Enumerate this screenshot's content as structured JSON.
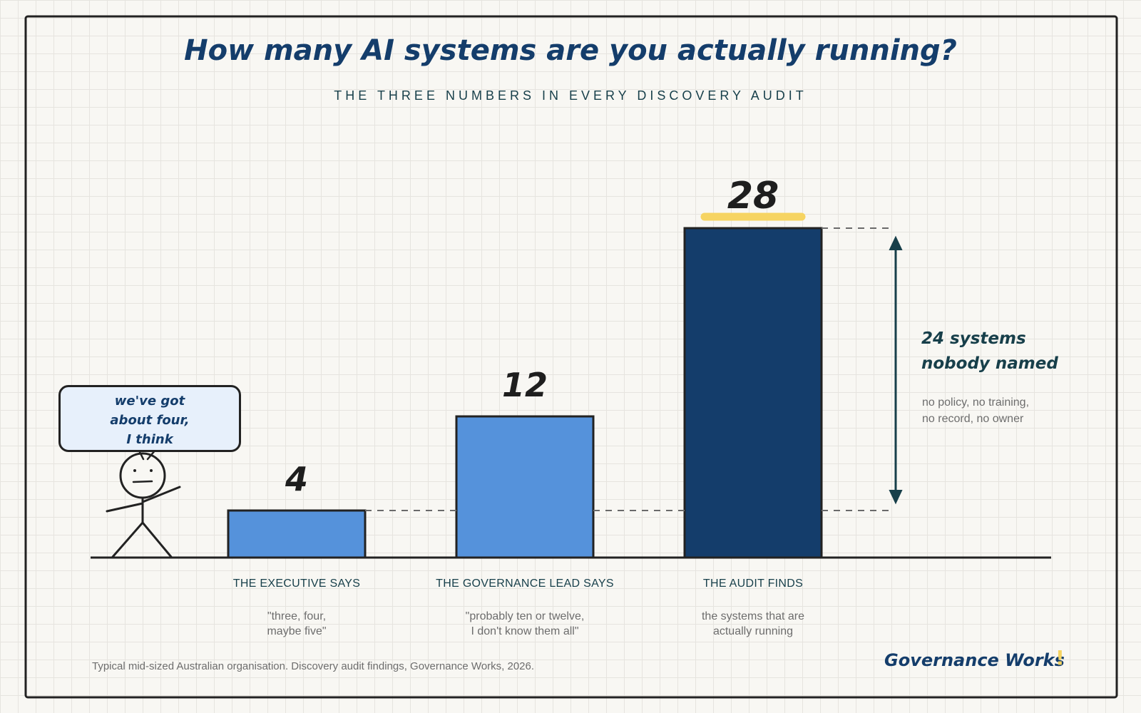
{
  "header": {
    "title": "How many AI systems are you actually running?",
    "subtitle": "THE THREE NUMBERS IN EVERY DISCOVERY AUDIT"
  },
  "speech_bubble": {
    "lines": [
      "we've got",
      "about four,",
      "I think"
    ]
  },
  "chart_data": {
    "type": "bar",
    "title": "How many AI systems are you actually running?",
    "subtitle": "THE THREE NUMBERS IN EVERY DISCOVERY AUDIT",
    "categories": [
      "THE EXECUTIVE SAYS",
      "THE GOVERNANCE LEAD SAYS",
      "THE AUDIT FINDS"
    ],
    "values": [
      4,
      12,
      28
    ],
    "value_labels": [
      "4",
      "12",
      "28"
    ],
    "quotes": [
      [
        "\"three, four,",
        "maybe five\""
      ],
      [
        "\"probably ten or twelve,",
        "I don't know them all\""
      ],
      [
        "the systems that are",
        "actually running"
      ]
    ],
    "colors": [
      "#5592db",
      "#5592db",
      "#143d6b"
    ],
    "highlight_color": "#f6d462",
    "ylim": [
      0,
      28
    ],
    "grid": false,
    "annotation": {
      "from_value": 4,
      "to_value": 28,
      "title_lines": [
        "24 systems",
        "nobody named"
      ],
      "detail_lines": [
        "no policy, no training,",
        "no record, no owner"
      ]
    }
  },
  "footer": {
    "note": "Typical mid-sized Australian organisation. Discovery audit findings, Governance Works, 2026.",
    "brand": "Governance Works",
    "brand_mark": "!"
  }
}
